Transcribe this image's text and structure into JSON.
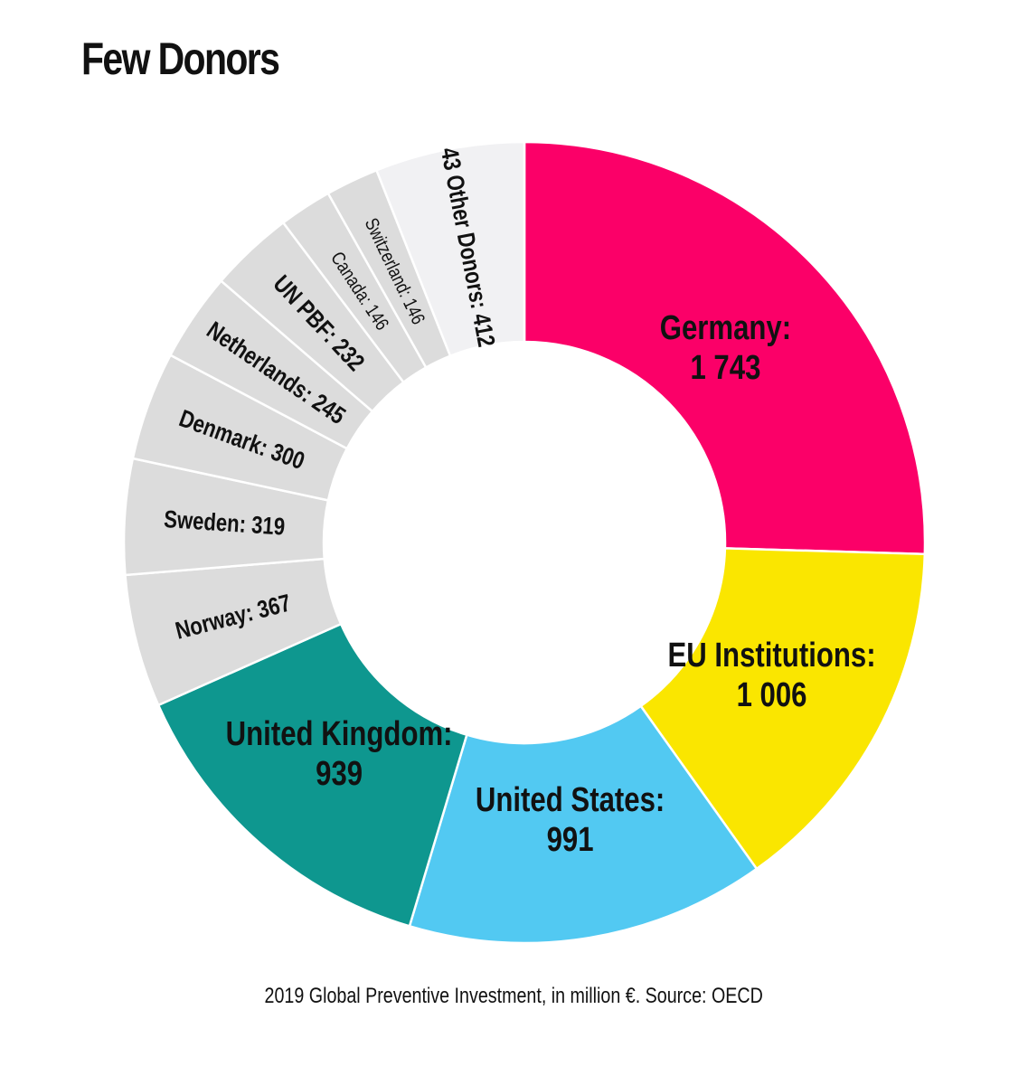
{
  "title": "Few Donors",
  "caption": "2019 Global Preventive Investment, in million €. Source: OECD",
  "chart_data": {
    "type": "pie",
    "title": "Few Donors",
    "subtitle": "2019 Global Preventive Investment, in million €. Source: OECD",
    "slices": [
      {
        "name": "Germany",
        "value": 1743,
        "value_text": "1 743",
        "color": "#fb0068",
        "label_lines": [
          "Germany:",
          "1 743"
        ]
      },
      {
        "name": "EU Institutions",
        "value": 1006,
        "value_text": "1 006",
        "color": "#fae600",
        "label_lines": [
          "EU Institutions:",
          "1 006"
        ]
      },
      {
        "name": "United States",
        "value": 991,
        "value_text": "991",
        "color": "#52c9f2",
        "label_lines": [
          "United States:",
          "991"
        ]
      },
      {
        "name": "United Kingdom",
        "value": 939,
        "value_text": "939",
        "color": "#0e978f",
        "label_lines": [
          "United Kingdom:",
          "939"
        ]
      },
      {
        "name": "Norway",
        "value": 367,
        "value_text": "367",
        "color": "#dcdcdc",
        "label_lines": [
          "Norway: 367"
        ]
      },
      {
        "name": "Sweden",
        "value": 319,
        "value_text": "319",
        "color": "#dcdcdc",
        "label_lines": [
          "Sweden: 319"
        ]
      },
      {
        "name": "Denmark",
        "value": 300,
        "value_text": "300",
        "color": "#dcdcdc",
        "label_lines": [
          "Denmark: 300"
        ]
      },
      {
        "name": "Netherlands",
        "value": 245,
        "value_text": "245",
        "color": "#dcdcdc",
        "label_lines": [
          "Netherlands:  245"
        ]
      },
      {
        "name": "UN PBF",
        "value": 232,
        "value_text": "232",
        "color": "#dcdcdc",
        "label_lines": [
          "UN PBF: 232"
        ]
      },
      {
        "name": "Canada",
        "value": 146,
        "value_text": "146",
        "color": "#dcdcdc",
        "label_lines": [
          "Canada: 146"
        ]
      },
      {
        "name": "Switzerland",
        "value": 146,
        "value_text": "146",
        "color": "#dcdcdc",
        "label_lines": [
          "Switzerland: 146"
        ]
      },
      {
        "name": "43 Other Donors",
        "value": 412,
        "value_text": "412",
        "color": "#f1f1f3",
        "label_lines": [
          "43 Other Donors: 412"
        ]
      }
    ]
  }
}
